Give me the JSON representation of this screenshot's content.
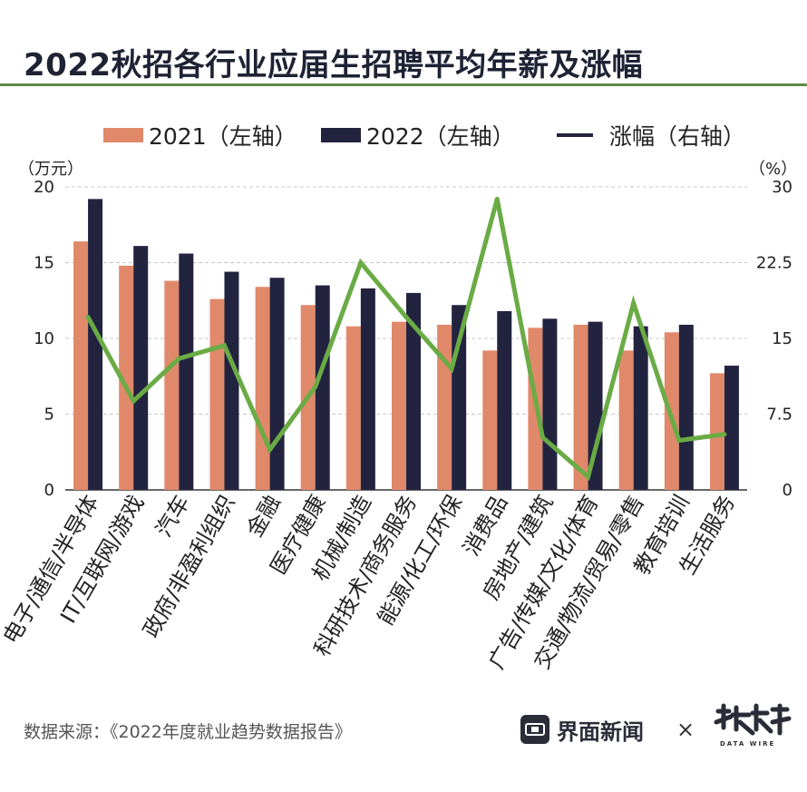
{
  "title": "2022秋招各行业应届生招聘平均年薪及涨幅",
  "legend": {
    "series_2021": "2021（左轴）",
    "series_2022": "2022（左轴）",
    "growth": "涨幅（右轴）"
  },
  "left_unit": "（万元）",
  "right_unit": "（%）",
  "source": "数据来源：《2022年度就业趋势数据报告》",
  "brand_name": "界面新闻",
  "times_sign": "×",
  "logo_text": "DATA WIRE",
  "colors": {
    "bar_2021": "#e0896a",
    "bar_2022": "#22243f",
    "line": "#6aab45",
    "grid": "#c8c8c8",
    "title_rule": "#5e8b44"
  },
  "chart_data": {
    "type": "bar",
    "categories": [
      "电子/通信/半导体",
      "IT/互联网/游戏",
      "汽车",
      "政府/非盈利组织",
      "金融",
      "医疗健康",
      "机械/制造",
      "科研技术/商务服务",
      "能源/化工/环保",
      "消费品",
      "房地产/建筑",
      "广告/传媒/文化/体育",
      "交通/物流/贸易/零售",
      "教育培训",
      "生活服务"
    ],
    "series": [
      {
        "name": "2021（左轴）",
        "axis": "left",
        "values": [
          16.4,
          14.8,
          13.8,
          12.6,
          13.4,
          12.2,
          10.8,
          11.1,
          10.9,
          9.2,
          10.7,
          10.9,
          9.2,
          10.4,
          7.7
        ]
      },
      {
        "name": "2022（左轴）",
        "axis": "left",
        "values": [
          19.2,
          16.1,
          15.6,
          14.4,
          14.0,
          13.5,
          13.3,
          13.0,
          12.2,
          11.8,
          11.3,
          11.1,
          10.8,
          10.9,
          8.2
        ]
      },
      {
        "name": "涨幅（右轴）",
        "axis": "right",
        "type": "line",
        "values": [
          17.1,
          8.8,
          13.0,
          14.3,
          4.0,
          10.2,
          22.5,
          17.1,
          12.0,
          28.8,
          5.2,
          1.3,
          18.5,
          4.9,
          5.5
        ]
      }
    ],
    "y_left": {
      "ylim": [
        0,
        20
      ],
      "ticks": [
        "0",
        "5",
        "10",
        "15",
        "20"
      ]
    },
    "y_right": {
      "ylim": [
        0,
        30
      ],
      "ticks": [
        "0",
        "7.5",
        "15",
        "22.5",
        "30"
      ]
    },
    "grid": true,
    "legend_position": "top"
  }
}
